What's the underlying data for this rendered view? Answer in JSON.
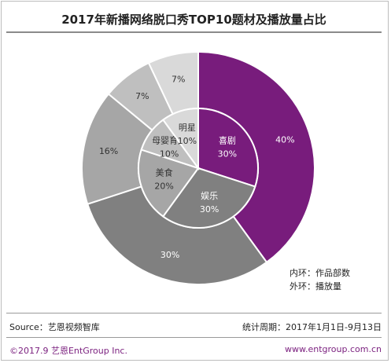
{
  "title": "2017年新播网络脱口秀TOP10题材及播放量占比",
  "chart_data": {
    "type": "pie",
    "title": "2017年新播网络脱口秀TOP10题材及播放量占比",
    "rings": [
      {
        "name": "外环：播放量",
        "slices": [
          {
            "value": 40,
            "label": "40%",
            "color": "#781c7c"
          },
          {
            "value": 30,
            "label": "30%",
            "color": "#808080"
          },
          {
            "value": 16,
            "label": "16%",
            "color": "#a6a6a6"
          },
          {
            "value": 7,
            "label": "7%",
            "color": "#bfbfbf"
          },
          {
            "value": 7,
            "label": "7%",
            "color": "#d9d9d9"
          }
        ]
      },
      {
        "name": "内环：作品部数",
        "slices": [
          {
            "value": 30,
            "category": "喜剧",
            "label": "30%",
            "color": "#781c7c"
          },
          {
            "value": 30,
            "category": "娱乐",
            "label": "30%",
            "color": "#808080"
          },
          {
            "value": 20,
            "category": "美食",
            "label": "20%",
            "color": "#a6a6a6"
          },
          {
            "value": 10,
            "category": "母婴育儿",
            "label": "10%",
            "color": "#bfbfbf"
          },
          {
            "value": 10,
            "category": "明星",
            "label": "10%",
            "color": "#d9d9d9"
          }
        ]
      }
    ],
    "legend": [
      "内环：作品部数",
      "外环：播放量"
    ],
    "legend_position": "bottom-right"
  },
  "footer": {
    "source": "Source：艺恩视频智库",
    "period": "统计周期：2017年1月1日-9月13日",
    "copyright": "©2017.9  艺恩EntGroup Inc.",
    "website": "www.entgroup.com.cn"
  }
}
